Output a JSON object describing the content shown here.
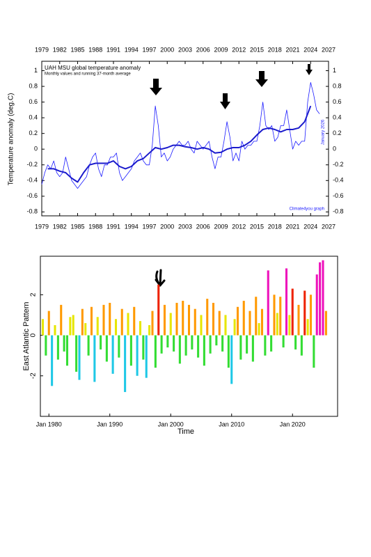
{
  "chart_data": [
    {
      "type": "line",
      "title": "UAH MSU global temperature anomaly",
      "subtitle": "Monthly values and running 37-month average",
      "y_label": "Temperature anomaly (deg.C)",
      "date_note": "January 2026",
      "credit": "Climate4you graph",
      "xlim": [
        1979,
        2027
      ],
      "xticks": [
        1979,
        1982,
        1985,
        1988,
        1991,
        1994,
        1997,
        2000,
        2003,
        2006,
        2009,
        2012,
        2015,
        2018,
        2021,
        2024,
        2027
      ],
      "ylim": [
        -0.85,
        1.12
      ],
      "yticks": [
        -0.8,
        -0.6,
        -0.4,
        -0.2,
        0,
        0.2,
        0.4,
        0.6,
        0.8,
        1
      ],
      "series": [
        {
          "color": "#1a1aff",
          "width": 0.8,
          "x": [
            1979,
            1979.5,
            1980,
            1980.5,
            1981,
            1981.5,
            1982,
            1982.5,
            1983,
            1983.5,
            1984,
            1984.5,
            1985,
            1985.5,
            1986,
            1986.5,
            1987,
            1987.5,
            1988,
            1988.5,
            1989,
            1989.5,
            1990,
            1990.5,
            1991,
            1991.5,
            1992,
            1992.5,
            1993,
            1993.5,
            1994,
            1994.5,
            1995,
            1995.5,
            1996,
            1996.5,
            1997,
            1997.5,
            1998,
            1998.5,
            1999,
            1999.5,
            2000,
            2000.5,
            2001,
            2001.5,
            2002,
            2002.5,
            2003,
            2003.5,
            2004,
            2004.5,
            2005,
            2005.5,
            2006,
            2006.5,
            2007,
            2007.5,
            2008,
            2008.5,
            2009,
            2009.5,
            2010,
            2010.5,
            2011,
            2011.5,
            2012,
            2012.5,
            2013,
            2013.5,
            2014,
            2014.5,
            2015,
            2015.5,
            2016,
            2016.5,
            2017,
            2017.5,
            2018,
            2018.5,
            2019,
            2019.5,
            2020,
            2020.5,
            2021,
            2021.5,
            2022,
            2022.5,
            2023,
            2023.5,
            2024,
            2024.5,
            2025,
            2025.5
          ],
          "values": [
            -0.45,
            -0.3,
            -0.2,
            -0.25,
            -0.15,
            -0.3,
            -0.35,
            -0.3,
            -0.1,
            -0.25,
            -0.4,
            -0.45,
            -0.5,
            -0.45,
            -0.4,
            -0.35,
            -0.2,
            -0.1,
            -0.05,
            -0.25,
            -0.35,
            -0.2,
            -0.2,
            -0.1,
            -0.1,
            -0.05,
            -0.3,
            -0.4,
            -0.35,
            -0.3,
            -0.25,
            -0.15,
            -0.1,
            -0.05,
            -0.15,
            -0.2,
            -0.2,
            0.05,
            0.55,
            0.3,
            -0.1,
            -0.05,
            -0.15,
            -0.1,
            0,
            0.05,
            0.1,
            0.05,
            0.05,
            0.1,
            0,
            -0.05,
            0.1,
            0.05,
            0,
            0.05,
            0.1,
            -0.1,
            -0.25,
            -0.1,
            -0.1,
            0.1,
            0.35,
            0.15,
            -0.15,
            -0.05,
            -0.15,
            0.1,
            0,
            0.05,
            0.05,
            0.1,
            0.1,
            0.3,
            0.6,
            0.3,
            0.25,
            0.3,
            0.1,
            0.15,
            0.3,
            0.3,
            0.5,
            0.25,
            0,
            0.1,
            0.05,
            0.1,
            0.1,
            0.6,
            0.85,
            0.7,
            0.5,
            0.45
          ]
        },
        {
          "color": "#1a1acc",
          "width": 2,
          "x": [
            1980,
            1981,
            1982,
            1983,
            1984,
            1985,
            1986,
            1987,
            1988,
            1989,
            1990,
            1991,
            1992,
            1993,
            1994,
            1995,
            1996,
            1997,
            1998,
            1999,
            2000,
            2001,
            2002,
            2003,
            2004,
            2005,
            2006,
            2007,
            2008,
            2009,
            2010,
            2011,
            2012,
            2013,
            2014,
            2015,
            2016,
            2017,
            2018,
            2019,
            2020,
            2021,
            2022,
            2023,
            2024
          ],
          "values": [
            -0.25,
            -0.25,
            -0.28,
            -0.3,
            -0.37,
            -0.42,
            -0.3,
            -0.2,
            -0.18,
            -0.18,
            -0.18,
            -0.15,
            -0.22,
            -0.25,
            -0.22,
            -0.15,
            -0.12,
            -0.05,
            0.02,
            0,
            0.02,
            0.05,
            0.05,
            0.03,
            0.02,
            0,
            0.02,
            0,
            -0.05,
            -0.04,
            0,
            0.02,
            0.02,
            0.05,
            0.1,
            0.18,
            0.25,
            0.27,
            0.25,
            0.22,
            0.25,
            0.25,
            0.27,
            0.35,
            0.55
          ]
        }
      ]
    },
    {
      "type": "bar",
      "y_label": "East Atlantic Pattern",
      "x_label": "Time",
      "xlim": [
        1978.6,
        2027.4
      ],
      "xticks": [
        {
          "value": 1980,
          "label": "Jan 1980"
        },
        {
          "value": 1990,
          "label": "Jan 1990"
        },
        {
          "value": 2000,
          "label": "Jan 2000"
        },
        {
          "value": 2010,
          "label": "Jan 2010"
        },
        {
          "value": 2020,
          "label": "Jan 2020"
        }
      ],
      "ylim": [
        -4,
        3.9
      ],
      "yticks": [
        -2,
        0,
        2
      ],
      "colormap": [
        [
          -4,
          "#1ec8e6"
        ],
        [
          -1.8,
          "#33dd33"
        ],
        [
          0,
          "#e6e600"
        ],
        [
          1.2,
          "#ff9900"
        ],
        [
          2.2,
          "#ee2200"
        ],
        [
          2.8,
          "#ee11bb"
        ]
      ],
      "x": [
        1979,
        1979.5,
        1980,
        1980.5,
        1981,
        1981.5,
        1982,
        1982.5,
        1983,
        1983.5,
        1984,
        1984.5,
        1985,
        1985.5,
        1986,
        1986.5,
        1987,
        1987.5,
        1988,
        1988.5,
        1989,
        1989.5,
        1990,
        1990.5,
        1991,
        1991.5,
        1992,
        1992.5,
        1993,
        1993.5,
        1994,
        1994.5,
        1995,
        1995.5,
        1996,
        1996.5,
        1997,
        1997.5,
        1998,
        1998.5,
        1999,
        1999.5,
        2000,
        2000.5,
        2001,
        2001.5,
        2002,
        2002.5,
        2003,
        2003.5,
        2004,
        2004.5,
        2005,
        2005.5,
        2006,
        2006.5,
        2007,
        2007.5,
        2008,
        2008.5,
        2009,
        2009.5,
        2010,
        2010.5,
        2011,
        2011.5,
        2012,
        2012.5,
        2013,
        2013.5,
        2014,
        2014.5,
        2015,
        2015.5,
        2016,
        2016.5,
        2017,
        2017.5,
        2018,
        2018.5,
        2019,
        2019.5,
        2020,
        2020.5,
        2021,
        2021.5,
        2022,
        2022.5,
        2023,
        2023.5,
        2024,
        2024.5,
        2025,
        2025.5
      ],
      "values": [
        0.8,
        -1,
        1.2,
        -2.5,
        0.5,
        -1.2,
        1.5,
        -0.8,
        -1.5,
        0.9,
        1,
        -1.8,
        -2.2,
        1.3,
        0.6,
        -1,
        1.4,
        -2.3,
        0.9,
        -0.7,
        1.5,
        -1.3,
        1.6,
        -1.9,
        0.8,
        -1.1,
        1.3,
        -2.8,
        1.1,
        -1.5,
        1.4,
        -2,
        0.7,
        -1.2,
        -2.1,
        0.5,
        1.2,
        -1.6,
        2.5,
        -0.9,
        1.5,
        -0.6,
        1.1,
        -0.8,
        1.6,
        -1.4,
        1.7,
        -1,
        1.5,
        -0.7,
        1.3,
        -1.1,
        1,
        -1.5,
        1.8,
        -0.9,
        1.6,
        -0.5,
        1.2,
        -0.8,
        1,
        -1.6,
        -2.4,
        0.8,
        1.4,
        -1.2,
        1.7,
        -0.9,
        1.2,
        -1.3,
        1.9,
        0.6,
        1.3,
        -1,
        3.2,
        -0.8,
        2,
        1.1,
        1.9,
        -0.6,
        3.3,
        1,
        2.3,
        -0.7,
        1.5,
        -1,
        2.2,
        0.8,
        2,
        -1.6,
        3,
        3.6,
        3.7,
        1.2
      ]
    }
  ]
}
